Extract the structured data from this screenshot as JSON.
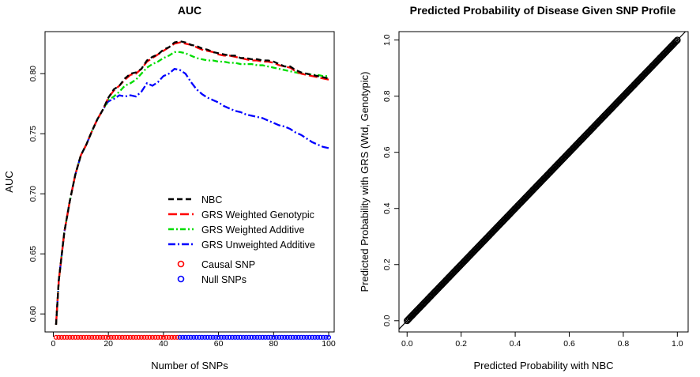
{
  "chart_data": [
    {
      "type": "line",
      "title": "AUC",
      "xlabel": "Number of SNPs",
      "ylabel": "AUC",
      "xlim": [
        0,
        100
      ],
      "ylim": [
        0.585,
        0.835
      ],
      "x_ticks": [
        0,
        20,
        40,
        60,
        80,
        100
      ],
      "y_ticks": [
        0.6,
        0.65,
        0.7,
        0.75,
        0.8
      ],
      "x_tick_labels": [
        "0",
        "20",
        "40",
        "60",
        "80",
        "100"
      ],
      "y_tick_labels": [
        "0.60",
        "0.65",
        "0.70",
        "0.75",
        "0.80"
      ],
      "series": [
        {
          "name": "NBC",
          "color": "#000000",
          "dash": "7,4",
          "points": [
            [
              1,
              0.591
            ],
            [
              2,
              0.628
            ],
            [
              4,
              0.668
            ],
            [
              6,
              0.694
            ],
            [
              8,
              0.716
            ],
            [
              10,
              0.732
            ],
            [
              12,
              0.741
            ],
            [
              14,
              0.752
            ],
            [
              16,
              0.762
            ],
            [
              18,
              0.77
            ],
            [
              20,
              0.78
            ],
            [
              22,
              0.787
            ],
            [
              24,
              0.79
            ],
            [
              26,
              0.796
            ],
            [
              28,
              0.8
            ],
            [
              30,
              0.801
            ],
            [
              32,
              0.804
            ],
            [
              34,
              0.811
            ],
            [
              36,
              0.814
            ],
            [
              38,
              0.816
            ],
            [
              40,
              0.82
            ],
            [
              42,
              0.822
            ],
            [
              44,
              0.826
            ],
            [
              46,
              0.827
            ],
            [
              48,
              0.826
            ],
            [
              50,
              0.824
            ],
            [
              52,
              0.823
            ],
            [
              54,
              0.821
            ],
            [
              56,
              0.82
            ],
            [
              58,
              0.818
            ],
            [
              60,
              0.817
            ],
            [
              62,
              0.816
            ],
            [
              64,
              0.815
            ],
            [
              66,
              0.815
            ],
            [
              68,
              0.813
            ],
            [
              70,
              0.813
            ],
            [
              72,
              0.812
            ],
            [
              74,
              0.812
            ],
            [
              76,
              0.811
            ],
            [
              78,
              0.811
            ],
            [
              80,
              0.81
            ],
            [
              82,
              0.808
            ],
            [
              84,
              0.806
            ],
            [
              86,
              0.806
            ],
            [
              88,
              0.803
            ],
            [
              90,
              0.801
            ],
            [
              92,
              0.8
            ],
            [
              94,
              0.799
            ],
            [
              96,
              0.798
            ],
            [
              98,
              0.797
            ],
            [
              100,
              0.796
            ]
          ]
        },
        {
          "name": "GRS Weighted Genotypic",
          "color": "#ff0000",
          "dash": "11,4",
          "points": [
            [
              1,
              0.591
            ],
            [
              2,
              0.628
            ],
            [
              4,
              0.668
            ],
            [
              6,
              0.694
            ],
            [
              8,
              0.716
            ],
            [
              10,
              0.732
            ],
            [
              12,
              0.741
            ],
            [
              14,
              0.752
            ],
            [
              16,
              0.762
            ],
            [
              18,
              0.77
            ],
            [
              20,
              0.78
            ],
            [
              22,
              0.786
            ],
            [
              24,
              0.79
            ],
            [
              26,
              0.795
            ],
            [
              28,
              0.799
            ],
            [
              30,
              0.8
            ],
            [
              32,
              0.804
            ],
            [
              34,
              0.81
            ],
            [
              36,
              0.813
            ],
            [
              38,
              0.816
            ],
            [
              40,
              0.819
            ],
            [
              42,
              0.822
            ],
            [
              44,
              0.825
            ],
            [
              46,
              0.826
            ],
            [
              48,
              0.825
            ],
            [
              50,
              0.824
            ],
            [
              52,
              0.822
            ],
            [
              54,
              0.82
            ],
            [
              56,
              0.819
            ],
            [
              58,
              0.818
            ],
            [
              60,
              0.816
            ],
            [
              62,
              0.815
            ],
            [
              64,
              0.815
            ],
            [
              66,
              0.814
            ],
            [
              68,
              0.813
            ],
            [
              70,
              0.812
            ],
            [
              72,
              0.811
            ],
            [
              74,
              0.811
            ],
            [
              76,
              0.81
            ],
            [
              78,
              0.81
            ],
            [
              80,
              0.809
            ],
            [
              82,
              0.807
            ],
            [
              84,
              0.806
            ],
            [
              86,
              0.805
            ],
            [
              88,
              0.802
            ],
            [
              90,
              0.8
            ],
            [
              92,
              0.799
            ],
            [
              94,
              0.798
            ],
            [
              96,
              0.797
            ],
            [
              98,
              0.796
            ],
            [
              100,
              0.795
            ]
          ]
        },
        {
          "name": "GRS Weighted Additive",
          "color": "#00dd00",
          "dash": "7,3,2,3",
          "points": [
            [
              1,
              0.591
            ],
            [
              2,
              0.628
            ],
            [
              4,
              0.668
            ],
            [
              6,
              0.694
            ],
            [
              8,
              0.716
            ],
            [
              10,
              0.732
            ],
            [
              12,
              0.741
            ],
            [
              14,
              0.752
            ],
            [
              16,
              0.762
            ],
            [
              18,
              0.77
            ],
            [
              20,
              0.778
            ],
            [
              22,
              0.781
            ],
            [
              24,
              0.785
            ],
            [
              26,
              0.79
            ],
            [
              28,
              0.792
            ],
            [
              30,
              0.795
            ],
            [
              32,
              0.8
            ],
            [
              34,
              0.805
            ],
            [
              36,
              0.808
            ],
            [
              38,
              0.81
            ],
            [
              40,
              0.813
            ],
            [
              42,
              0.815
            ],
            [
              44,
              0.818
            ],
            [
              46,
              0.818
            ],
            [
              48,
              0.817
            ],
            [
              50,
              0.815
            ],
            [
              52,
              0.813
            ],
            [
              54,
              0.812
            ],
            [
              56,
              0.811
            ],
            [
              58,
              0.811
            ],
            [
              60,
              0.81
            ],
            [
              62,
              0.81
            ],
            [
              64,
              0.809
            ],
            [
              66,
              0.809
            ],
            [
              68,
              0.808
            ],
            [
              70,
              0.808
            ],
            [
              72,
              0.808
            ],
            [
              74,
              0.807
            ],
            [
              76,
              0.807
            ],
            [
              78,
              0.806
            ],
            [
              80,
              0.805
            ],
            [
              82,
              0.804
            ],
            [
              84,
              0.803
            ],
            [
              86,
              0.802
            ],
            [
              88,
              0.801
            ],
            [
              90,
              0.8
            ],
            [
              92,
              0.8
            ],
            [
              94,
              0.799
            ],
            [
              96,
              0.799
            ],
            [
              98,
              0.798
            ],
            [
              100,
              0.798
            ]
          ]
        },
        {
          "name": "GRS Unweighted Additive",
          "color": "#0000ff",
          "dash": "9,3,2,3",
          "points": [
            [
              1,
              0.591
            ],
            [
              2,
              0.628
            ],
            [
              4,
              0.668
            ],
            [
              6,
              0.694
            ],
            [
              8,
              0.716
            ],
            [
              10,
              0.732
            ],
            [
              12,
              0.741
            ],
            [
              14,
              0.752
            ],
            [
              16,
              0.762
            ],
            [
              18,
              0.77
            ],
            [
              20,
              0.777
            ],
            [
              22,
              0.779
            ],
            [
              24,
              0.782
            ],
            [
              26,
              0.781
            ],
            [
              28,
              0.782
            ],
            [
              30,
              0.781
            ],
            [
              32,
              0.785
            ],
            [
              34,
              0.792
            ],
            [
              36,
              0.79
            ],
            [
              38,
              0.793
            ],
            [
              40,
              0.798
            ],
            [
              42,
              0.8
            ],
            [
              44,
              0.804
            ],
            [
              46,
              0.803
            ],
            [
              48,
              0.8
            ],
            [
              50,
              0.793
            ],
            [
              52,
              0.787
            ],
            [
              54,
              0.783
            ],
            [
              56,
              0.78
            ],
            [
              58,
              0.778
            ],
            [
              60,
              0.776
            ],
            [
              62,
              0.773
            ],
            [
              64,
              0.771
            ],
            [
              66,
              0.769
            ],
            [
              68,
              0.768
            ],
            [
              70,
              0.766
            ],
            [
              72,
              0.765
            ],
            [
              74,
              0.764
            ],
            [
              76,
              0.763
            ],
            [
              78,
              0.761
            ],
            [
              80,
              0.759
            ],
            [
              82,
              0.757
            ],
            [
              84,
              0.756
            ],
            [
              86,
              0.754
            ],
            [
              88,
              0.751
            ],
            [
              90,
              0.749
            ],
            [
              92,
              0.746
            ],
            [
              94,
              0.743
            ],
            [
              96,
              0.741
            ],
            [
              98,
              0.739
            ],
            [
              100,
              0.738
            ]
          ]
        }
      ],
      "snp_markers": {
        "y": 0.5805,
        "x_range": [
          1,
          100
        ],
        "causal_x_end": 45,
        "causal_color": "#ff0000",
        "null_color": "#0000ff",
        "causal_label": "Causal SNP",
        "null_label": "Null SNPs"
      },
      "legend_position": "bottom-right"
    },
    {
      "type": "scatter",
      "title": "Predicted Probability of Disease Given SNP Profile",
      "xlabel": "Predicted Probability with NBC",
      "ylabel": "Predicted Probability with GRS (Wtd, Genotypic)",
      "xlim": [
        -0.03,
        1.04
      ],
      "ylim": [
        -0.04,
        1.03
      ],
      "x_ticks": [
        0.0,
        0.2,
        0.4,
        0.6,
        0.8,
        1.0
      ],
      "y_ticks": [
        0.0,
        0.2,
        0.4,
        0.6,
        0.8,
        1.0
      ],
      "x_tick_labels": [
        "0.0",
        "0.2",
        "0.4",
        "0.6",
        "0.8",
        "1.0"
      ],
      "y_tick_labels": [
        "0.0",
        "0.2",
        "0.4",
        "0.6",
        "0.8",
        "1.0"
      ],
      "point_range": [
        0.0,
        1.0
      ],
      "point_count": 250,
      "reference_line": {
        "intercept": 0,
        "slope": 1
      },
      "point_color": "#000000"
    }
  ]
}
